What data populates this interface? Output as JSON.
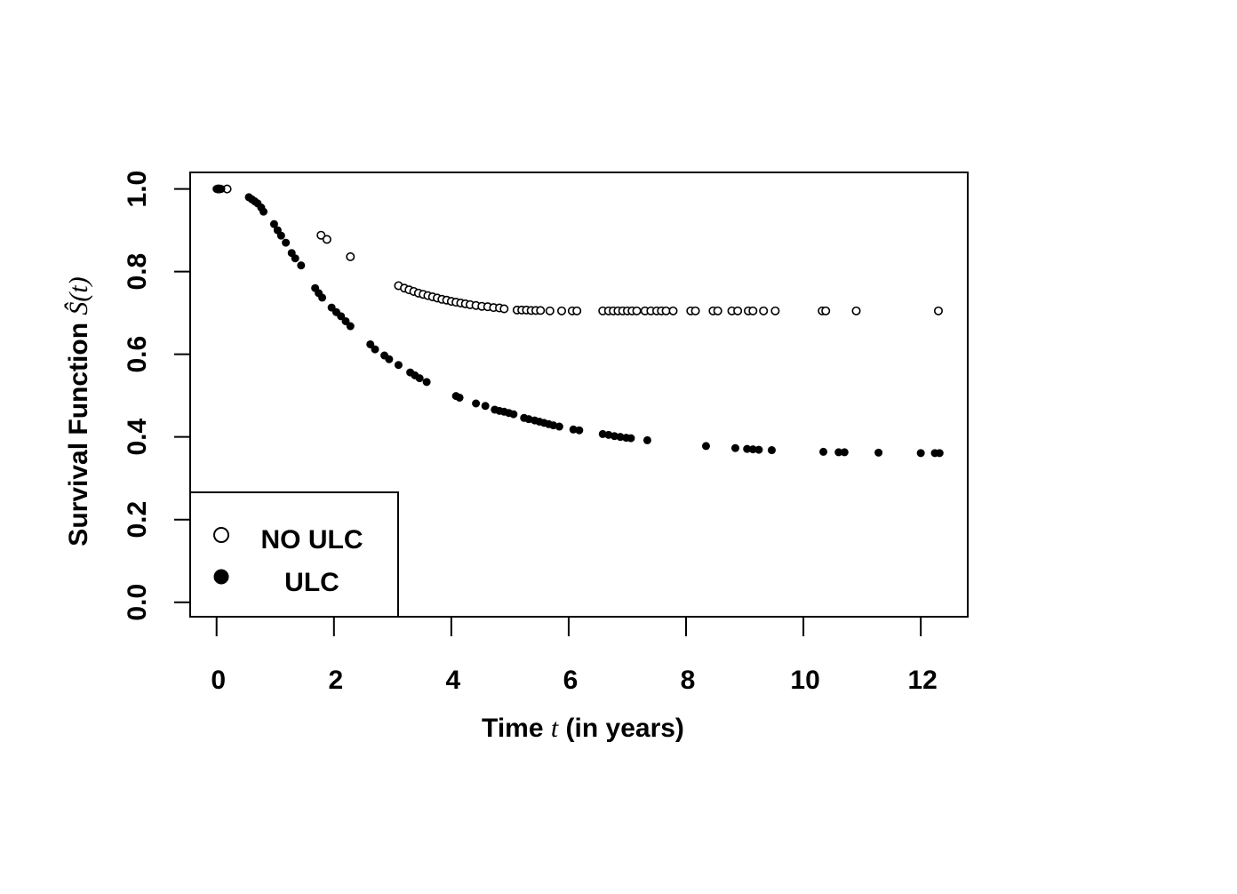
{
  "chart_data": {
    "type": "scatter",
    "xlabel_parts": [
      "Time ",
      "t",
      " (in years)"
    ],
    "ylabel_parts": [
      "Survival Function ",
      "Ŝ(t)"
    ],
    "xlim": [
      -0.45,
      12.8
    ],
    "ylim": [
      -0.035,
      1.04
    ],
    "x_ticks": [
      0,
      2,
      4,
      6,
      8,
      10,
      12
    ],
    "x_tick_labels": [
      "0",
      "2",
      "4",
      "6",
      "8",
      "10",
      "12"
    ],
    "y_ticks": [
      0.0,
      0.2,
      0.4,
      0.6,
      0.8,
      1.0
    ],
    "y_tick_labels": [
      "0.0",
      "0.2",
      "0.4",
      "0.6",
      "0.8",
      "1.0"
    ],
    "grid": false,
    "legend_position": "bottom-left",
    "series": [
      {
        "name": "NO ULC",
        "marker": "open-circle",
        "color": "#000000",
        "points": [
          [
            0.02,
            1.0
          ],
          [
            0.05,
            1.0
          ],
          [
            0.18,
            1.0
          ],
          [
            1.78,
            0.888
          ],
          [
            1.88,
            0.878
          ],
          [
            2.28,
            0.836
          ],
          [
            3.1,
            0.766
          ],
          [
            3.2,
            0.76
          ],
          [
            3.28,
            0.756
          ],
          [
            3.36,
            0.752
          ],
          [
            3.44,
            0.748
          ],
          [
            3.52,
            0.745
          ],
          [
            3.6,
            0.742
          ],
          [
            3.68,
            0.739
          ],
          [
            3.76,
            0.736
          ],
          [
            3.84,
            0.733
          ],
          [
            3.92,
            0.731
          ],
          [
            4.0,
            0.728
          ],
          [
            4.08,
            0.726
          ],
          [
            4.16,
            0.724
          ],
          [
            4.24,
            0.722
          ],
          [
            4.32,
            0.72
          ],
          [
            4.42,
            0.718
          ],
          [
            4.52,
            0.716
          ],
          [
            4.62,
            0.715
          ],
          [
            4.72,
            0.713
          ],
          [
            4.82,
            0.712
          ],
          [
            4.9,
            0.71
          ],
          [
            5.12,
            0.707
          ],
          [
            5.2,
            0.707
          ],
          [
            5.28,
            0.707
          ],
          [
            5.36,
            0.706
          ],
          [
            5.44,
            0.706
          ],
          [
            5.52,
            0.706
          ],
          [
            5.68,
            0.705
          ],
          [
            5.88,
            0.705
          ],
          [
            6.06,
            0.705
          ],
          [
            6.14,
            0.705
          ],
          [
            6.58,
            0.705
          ],
          [
            6.68,
            0.705
          ],
          [
            6.76,
            0.705
          ],
          [
            6.84,
            0.705
          ],
          [
            6.92,
            0.705
          ],
          [
            7.0,
            0.705
          ],
          [
            7.08,
            0.705
          ],
          [
            7.16,
            0.705
          ],
          [
            7.3,
            0.705
          ],
          [
            7.4,
            0.705
          ],
          [
            7.5,
            0.705
          ],
          [
            7.58,
            0.705
          ],
          [
            7.66,
            0.705
          ],
          [
            7.78,
            0.705
          ],
          [
            8.08,
            0.705
          ],
          [
            8.16,
            0.705
          ],
          [
            8.46,
            0.705
          ],
          [
            8.54,
            0.705
          ],
          [
            8.78,
            0.705
          ],
          [
            8.88,
            0.705
          ],
          [
            9.06,
            0.705
          ],
          [
            9.14,
            0.705
          ],
          [
            9.32,
            0.705
          ],
          [
            9.52,
            0.705
          ],
          [
            10.32,
            0.705
          ],
          [
            10.38,
            0.705
          ],
          [
            10.9,
            0.705
          ],
          [
            12.3,
            0.705
          ]
        ]
      },
      {
        "name": "ULC",
        "marker": "filled-circle",
        "color": "#000000",
        "points": [
          [
            0.0,
            1.0
          ],
          [
            0.04,
            1.0
          ],
          [
            0.08,
            1.0
          ],
          [
            0.55,
            0.98
          ],
          [
            0.6,
            0.975
          ],
          [
            0.65,
            0.97
          ],
          [
            0.7,
            0.965
          ],
          [
            0.76,
            0.955
          ],
          [
            0.8,
            0.945
          ],
          [
            0.98,
            0.915
          ],
          [
            1.04,
            0.9
          ],
          [
            1.1,
            0.887
          ],
          [
            1.18,
            0.87
          ],
          [
            1.28,
            0.845
          ],
          [
            1.34,
            0.832
          ],
          [
            1.44,
            0.815
          ],
          [
            1.68,
            0.76
          ],
          [
            1.74,
            0.748
          ],
          [
            1.8,
            0.737
          ],
          [
            1.96,
            0.713
          ],
          [
            2.04,
            0.702
          ],
          [
            2.12,
            0.692
          ],
          [
            2.2,
            0.68
          ],
          [
            2.28,
            0.668
          ],
          [
            2.62,
            0.624
          ],
          [
            2.7,
            0.612
          ],
          [
            2.86,
            0.597
          ],
          [
            2.94,
            0.588
          ],
          [
            3.1,
            0.574
          ],
          [
            3.3,
            0.556
          ],
          [
            3.38,
            0.549
          ],
          [
            3.46,
            0.542
          ],
          [
            3.58,
            0.533
          ],
          [
            4.08,
            0.499
          ],
          [
            4.14,
            0.495
          ],
          [
            4.42,
            0.481
          ],
          [
            4.58,
            0.475
          ],
          [
            4.74,
            0.466
          ],
          [
            4.82,
            0.463
          ],
          [
            4.9,
            0.461
          ],
          [
            4.98,
            0.458
          ],
          [
            5.06,
            0.455
          ],
          [
            5.24,
            0.446
          ],
          [
            5.32,
            0.443
          ],
          [
            5.42,
            0.44
          ],
          [
            5.5,
            0.437
          ],
          [
            5.58,
            0.434
          ],
          [
            5.66,
            0.431
          ],
          [
            5.74,
            0.428
          ],
          [
            5.84,
            0.425
          ],
          [
            6.08,
            0.418
          ],
          [
            6.18,
            0.416
          ],
          [
            6.58,
            0.407
          ],
          [
            6.68,
            0.405
          ],
          [
            6.78,
            0.402
          ],
          [
            6.88,
            0.4
          ],
          [
            6.98,
            0.398
          ],
          [
            7.06,
            0.397
          ],
          [
            7.34,
            0.392
          ],
          [
            8.34,
            0.378
          ],
          [
            8.84,
            0.373
          ],
          [
            9.04,
            0.371
          ],
          [
            9.14,
            0.37
          ],
          [
            9.24,
            0.369
          ],
          [
            9.46,
            0.368
          ],
          [
            10.34,
            0.364
          ],
          [
            10.6,
            0.363
          ],
          [
            10.7,
            0.363
          ],
          [
            11.28,
            0.362
          ],
          [
            12.0,
            0.361
          ],
          [
            12.24,
            0.361
          ],
          [
            12.32,
            0.361
          ]
        ]
      }
    ]
  }
}
